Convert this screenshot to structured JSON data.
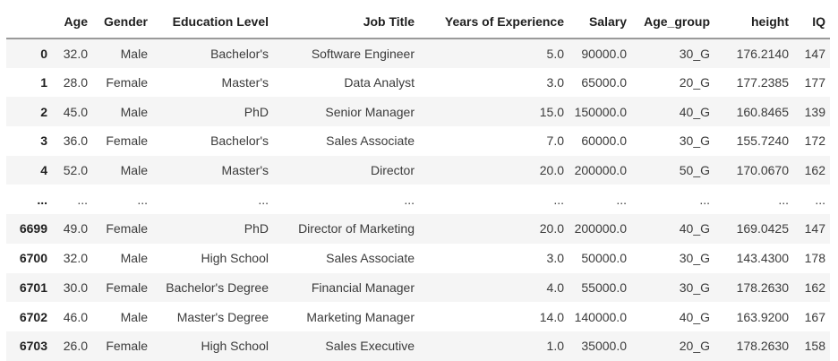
{
  "colors": {
    "background": "#ffffff",
    "row_stripe": "#f5f5f5",
    "header_rule": "#9a9a9a",
    "text": "#3b3b3b",
    "header_text": "#1f1f1f"
  },
  "dataframe": {
    "columns": [
      "",
      "Age",
      "Gender",
      "Education Level",
      "Job Title",
      "Years of Experience",
      "Salary",
      "Age_group",
      "height",
      "IQ"
    ],
    "rows": [
      {
        "index": "0",
        "cells": [
          "32.0",
          "Male",
          "Bachelor's",
          "Software Engineer",
          "5.0",
          "90000.0",
          "30_G",
          "176.2140",
          "147"
        ]
      },
      {
        "index": "1",
        "cells": [
          "28.0",
          "Female",
          "Master's",
          "Data Analyst",
          "3.0",
          "65000.0",
          "20_G",
          "177.2385",
          "177"
        ]
      },
      {
        "index": "2",
        "cells": [
          "45.0",
          "Male",
          "PhD",
          "Senior Manager",
          "15.0",
          "150000.0",
          "40_G",
          "160.8465",
          "139"
        ]
      },
      {
        "index": "3",
        "cells": [
          "36.0",
          "Female",
          "Bachelor's",
          "Sales Associate",
          "7.0",
          "60000.0",
          "30_G",
          "155.7240",
          "172"
        ]
      },
      {
        "index": "4",
        "cells": [
          "52.0",
          "Male",
          "Master's",
          "Director",
          "20.0",
          "200000.0",
          "50_G",
          "170.0670",
          "162"
        ]
      },
      {
        "index": "...",
        "cells": [
          "...",
          "...",
          "...",
          "...",
          "...",
          "...",
          "...",
          "...",
          "..."
        ]
      },
      {
        "index": "6699",
        "cells": [
          "49.0",
          "Female",
          "PhD",
          "Director of Marketing",
          "20.0",
          "200000.0",
          "40_G",
          "169.0425",
          "147"
        ]
      },
      {
        "index": "6700",
        "cells": [
          "32.0",
          "Male",
          "High School",
          "Sales Associate",
          "3.0",
          "50000.0",
          "30_G",
          "143.4300",
          "178"
        ]
      },
      {
        "index": "6701",
        "cells": [
          "30.0",
          "Female",
          "Bachelor's Degree",
          "Financial Manager",
          "4.0",
          "55000.0",
          "30_G",
          "178.2630",
          "162"
        ]
      },
      {
        "index": "6702",
        "cells": [
          "46.0",
          "Male",
          "Master's Degree",
          "Marketing Manager",
          "14.0",
          "140000.0",
          "40_G",
          "163.9200",
          "167"
        ]
      },
      {
        "index": "6703",
        "cells": [
          "26.0",
          "Female",
          "High School",
          "Sales Executive",
          "1.0",
          "35000.0",
          "20_G",
          "178.2630",
          "158"
        ]
      }
    ]
  }
}
